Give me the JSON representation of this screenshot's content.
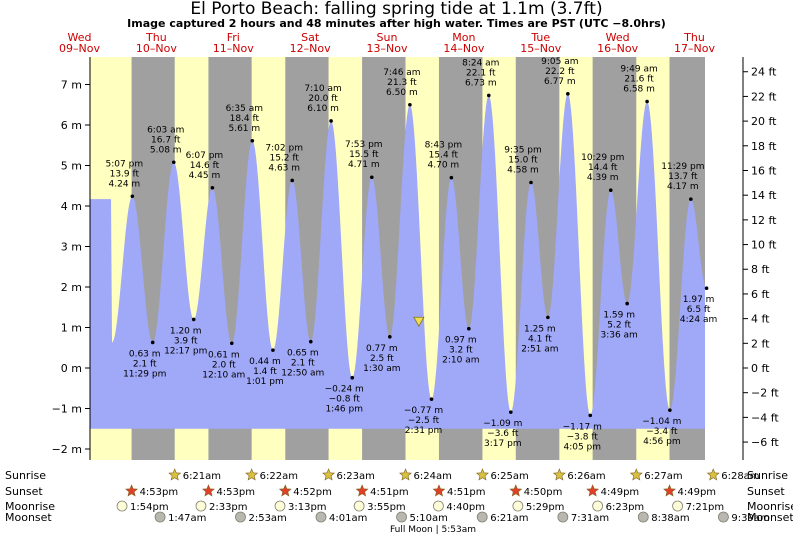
{
  "header": {
    "title": "El Porto Beach: falling  spring tide at 1.1m (3.7ft)",
    "subtitle": "Image captured 2 hours and 48 minutes after high water. Times are PST (UTC −8.0hrs)"
  },
  "chart_data": {
    "type": "area",
    "y_left_unit": "m",
    "y_left_ticks": [
      -2,
      -1,
      0,
      1,
      2,
      3,
      4,
      5,
      6,
      7
    ],
    "y_left_ticklabels": [
      "−2 m",
      "−1 m",
      "0 m",
      "1 m",
      "2 m",
      "3 m",
      "4 m",
      "5 m",
      "6 m",
      "7 m"
    ],
    "y_right_unit": "ft",
    "y_right_ticks": [
      -6,
      -4,
      -2,
      0,
      2,
      4,
      6,
      8,
      10,
      12,
      14,
      16,
      18,
      20,
      22,
      24
    ],
    "y_right_ticklabels": [
      "−6 ft",
      "−4 ft",
      "−2 ft",
      "0 ft",
      "2 ft",
      "4 ft",
      "6 ft",
      "8 ft",
      "10 ft",
      "12 ft",
      "14 ft",
      "16 ft",
      "18 ft",
      "20 ft",
      "22 ft",
      "24 ft"
    ],
    "ylim_m": [
      -2.3,
      7.7
    ],
    "x_days": [
      {
        "dow": "Wed",
        "date": "09–Nov"
      },
      {
        "dow": "Thu",
        "date": "10–Nov"
      },
      {
        "dow": "Fri",
        "date": "11–Nov"
      },
      {
        "dow": "Sat",
        "date": "12–Nov"
      },
      {
        "dow": "Sun",
        "date": "13–Nov"
      },
      {
        "dow": "Mon",
        "date": "14–Nov"
      },
      {
        "dow": "Tue",
        "date": "15–Nov"
      },
      {
        "dow": "Wed",
        "date": "16–Nov"
      },
      {
        "dow": "Thu",
        "date": "17–Nov"
      }
    ],
    "tide_extremes": [
      {
        "day": 0,
        "hour": 17.12,
        "m": 4.24,
        "time": "5:07 pm",
        "ft": "13.9 ft",
        "mlabel": "4.24 m",
        "type": "high"
      },
      {
        "day": 0,
        "hour": 23.48,
        "m": 0.63,
        "time": "11:29 pm",
        "ft": "2.1 ft",
        "mlabel": "0.63 m",
        "type": "low"
      },
      {
        "day": 1,
        "hour": 6.05,
        "m": 5.08,
        "time": "6:03 am",
        "ft": "16.7 ft",
        "mlabel": "5.08 m",
        "type": "high"
      },
      {
        "day": 1,
        "hour": 12.28,
        "m": 1.2,
        "time": "12:17 pm",
        "ft": "3.9 ft",
        "mlabel": "1.20 m",
        "type": "low"
      },
      {
        "day": 1,
        "hour": 18.12,
        "m": 4.45,
        "time": "6:07 pm",
        "ft": "14.6 ft",
        "mlabel": "4.45 m",
        "type": "high"
      },
      {
        "day": 2,
        "hour": 0.17,
        "m": 0.61,
        "time": "12:10 am",
        "ft": "2.0 ft",
        "mlabel": "0.61 m",
        "type": "low"
      },
      {
        "day": 2,
        "hour": 6.58,
        "m": 5.61,
        "time": "6:35 am",
        "ft": "18.4 ft",
        "mlabel": "5.61 m",
        "type": "high"
      },
      {
        "day": 2,
        "hour": 13.02,
        "m": 0.44,
        "time": "1:01 pm",
        "ft": "1.4 ft",
        "mlabel": "0.44 m",
        "type": "low"
      },
      {
        "day": 2,
        "hour": 19.03,
        "m": 4.63,
        "time": "7:02 pm",
        "ft": "15.2 ft",
        "mlabel": "4.63 m",
        "type": "high"
      },
      {
        "day": 3,
        "hour": 0.83,
        "m": 0.65,
        "time": "12:50 am",
        "ft": "2.1 ft",
        "mlabel": "0.65 m",
        "type": "low"
      },
      {
        "day": 3,
        "hour": 7.17,
        "m": 6.1,
        "time": "7:10 am",
        "ft": "20.0 ft",
        "mlabel": "6.10 m",
        "type": "high"
      },
      {
        "day": 3,
        "hour": 13.77,
        "m": -0.24,
        "time": "1:46 pm",
        "ft": "−0.8 ft",
        "mlabel": "−0.24 m",
        "type": "low"
      },
      {
        "day": 3,
        "hour": 19.88,
        "m": 4.71,
        "time": "7:53 pm",
        "ft": "15.5 ft",
        "mlabel": "4.71 m",
        "type": "high"
      },
      {
        "day": 4,
        "hour": 1.5,
        "m": 0.77,
        "time": "1:30 am",
        "ft": "2.5 ft",
        "mlabel": "0.77 m",
        "type": "low"
      },
      {
        "day": 4,
        "hour": 7.77,
        "m": 6.5,
        "time": "7:46 am",
        "ft": "21.3 ft",
        "mlabel": "6.50 m",
        "type": "high"
      },
      {
        "day": 4,
        "hour": 14.52,
        "m": -0.77,
        "time": "2:31 pm",
        "ft": "−2.5 ft",
        "mlabel": "−0.77 m",
        "type": "low"
      },
      {
        "day": 4,
        "hour": 20.72,
        "m": 4.7,
        "time": "8:43 pm",
        "ft": "15.4 ft",
        "mlabel": "4.70 m",
        "type": "high"
      },
      {
        "day": 5,
        "hour": 2.17,
        "m": 0.97,
        "time": "2:10 am",
        "ft": "3.2 ft",
        "mlabel": "0.97 m",
        "type": "low"
      },
      {
        "day": 5,
        "hour": 8.4,
        "m": 6.73,
        "time": "8:24 am",
        "ft": "22.1 ft",
        "mlabel": "6.73 m",
        "type": "high"
      },
      {
        "day": 5,
        "hour": 15.28,
        "m": -1.09,
        "time": "3:17 pm",
        "ft": "−3.6 ft",
        "mlabel": "−1.09 m",
        "type": "low"
      },
      {
        "day": 5,
        "hour": 21.58,
        "m": 4.58,
        "time": "9:35 pm",
        "ft": "15.0 ft",
        "mlabel": "4.58 m",
        "type": "high"
      },
      {
        "day": 6,
        "hour": 2.85,
        "m": 1.25,
        "time": "2:51 am",
        "ft": "4.1 ft",
        "mlabel": "1.25 m",
        "type": "low"
      },
      {
        "day": 6,
        "hour": 9.08,
        "m": 6.77,
        "time": "9:05 am",
        "ft": "22.2 ft",
        "mlabel": "6.77 m",
        "type": "high"
      },
      {
        "day": 6,
        "hour": 16.08,
        "m": -1.17,
        "time": "4:05 pm",
        "ft": "−3.8 ft",
        "mlabel": "−1.17 m",
        "type": "low"
      },
      {
        "day": 6,
        "hour": 22.48,
        "m": 4.39,
        "time": "10:29 pm",
        "ft": "14.4 ft",
        "mlabel": "4.39 m",
        "type": "high"
      },
      {
        "day": 7,
        "hour": 3.6,
        "m": 1.59,
        "time": "3:36 am",
        "ft": "5.2 ft",
        "mlabel": "1.59 m",
        "type": "low"
      },
      {
        "day": 7,
        "hour": 9.82,
        "m": 6.58,
        "time": "9:49 am",
        "ft": "21.6 ft",
        "mlabel": "6.58 m",
        "type": "high"
      },
      {
        "day": 7,
        "hour": 16.93,
        "m": -1.04,
        "time": "4:56 pm",
        "ft": "−3.4 ft",
        "mlabel": "−1.04 m",
        "type": "low"
      },
      {
        "day": 7,
        "hour": 23.48,
        "m": 4.17,
        "time": "11:29 pm",
        "ft": "13.7 ft",
        "mlabel": "4.17 m",
        "type": "high"
      },
      {
        "day": 8,
        "hour": 4.4,
        "m": 1.97,
        "time": "4:24 am",
        "ft": "6.5 ft",
        "mlabel": "1.97 m",
        "type": "low"
      }
    ],
    "current_marker": {
      "day": 4,
      "hour": 10.57,
      "m": 1.13
    },
    "colors": {
      "day_band": "#ffffc0",
      "night_band": "#a0a0a0",
      "water": "#a0a8f8",
      "sun_star": "#d8c040",
      "sunset_star": "#e04028"
    },
    "sunrise": [
      {
        "day": 1,
        "hour": 6.35,
        "label": "6:21am"
      },
      {
        "day": 2,
        "hour": 6.37,
        "label": "6:22am"
      },
      {
        "day": 3,
        "hour": 6.38,
        "label": "6:23am"
      },
      {
        "day": 4,
        "hour": 6.4,
        "label": "6:24am"
      },
      {
        "day": 5,
        "hour": 6.42,
        "label": "6:25am"
      },
      {
        "day": 6,
        "hour": 6.43,
        "label": "6:26am"
      },
      {
        "day": 7,
        "hour": 6.45,
        "label": "6:27am"
      },
      {
        "day": 8,
        "hour": 6.47,
        "label": "6:28am"
      }
    ],
    "sunset": [
      {
        "day": 0,
        "hour": 16.88,
        "label": "4:53pm"
      },
      {
        "day": 1,
        "hour": 16.88,
        "label": "4:53pm"
      },
      {
        "day": 2,
        "hour": 16.87,
        "label": "4:52pm"
      },
      {
        "day": 3,
        "hour": 16.85,
        "label": "4:51pm"
      },
      {
        "day": 4,
        "hour": 16.85,
        "label": "4:51pm"
      },
      {
        "day": 5,
        "hour": 16.83,
        "label": "4:50pm"
      },
      {
        "day": 6,
        "hour": 16.82,
        "label": "4:49pm"
      },
      {
        "day": 7,
        "hour": 16.82,
        "label": "4:49pm"
      }
    ],
    "moonrise": [
      {
        "day": 0,
        "hour": 13.9,
        "label": "1:54pm"
      },
      {
        "day": 1,
        "hour": 14.55,
        "label": "2:33pm"
      },
      {
        "day": 2,
        "hour": 15.22,
        "label": "3:13pm"
      },
      {
        "day": 3,
        "hour": 15.92,
        "label": "3:55pm"
      },
      {
        "day": 4,
        "hour": 16.67,
        "label": "4:40pm"
      },
      {
        "day": 5,
        "hour": 17.48,
        "label": "5:29pm"
      },
      {
        "day": 6,
        "hour": 18.38,
        "label": "6:23pm"
      },
      {
        "day": 7,
        "hour": 19.35,
        "label": "7:21pm"
      }
    ],
    "moonset": [
      {
        "day": 1,
        "hour": 1.78,
        "label": "1:47am"
      },
      {
        "day": 2,
        "hour": 2.88,
        "label": "2:53am"
      },
      {
        "day": 3,
        "hour": 4.02,
        "label": "4:01am"
      },
      {
        "day": 4,
        "hour": 5.17,
        "label": "5:10am"
      },
      {
        "day": 5,
        "hour": 6.35,
        "label": "6:21am"
      },
      {
        "day": 6,
        "hour": 7.52,
        "label": "7:31am"
      },
      {
        "day": 7,
        "hour": 8.63,
        "label": "8:38am"
      },
      {
        "day": 8,
        "hour": 9.65,
        "label": "9:39am"
      }
    ],
    "row_labels": {
      "sunrise": "Sunrise",
      "sunset": "Sunset",
      "moonrise": "Moonrise",
      "moonset": "Moonset"
    },
    "full_moon": "Full Moon | 5:53am"
  }
}
